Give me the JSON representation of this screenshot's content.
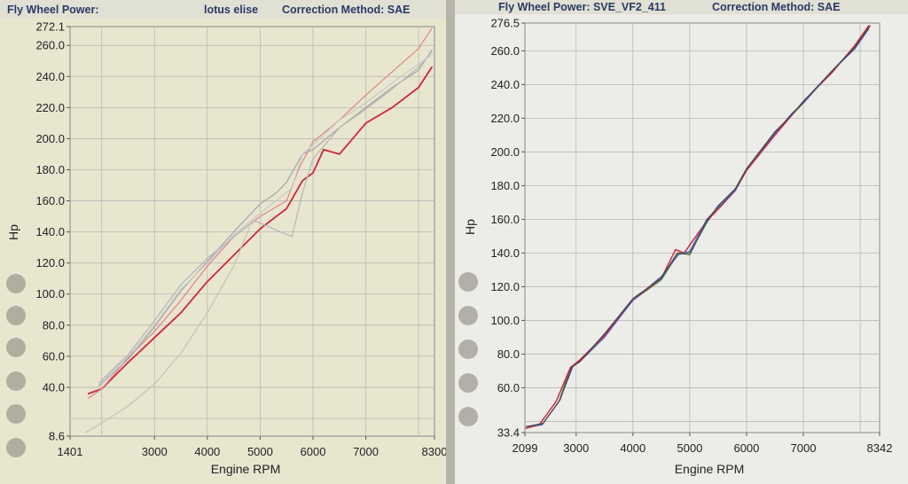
{
  "chart_data": [
    {
      "type": "line",
      "header": {
        "left": "Fly Wheel Power:",
        "middle": "lotus elise",
        "right": "Correction Method: SAE"
      },
      "xlabel": "Engine RPM",
      "ylabel": "Hp",
      "xlim": [
        1401,
        8300
      ],
      "ylim": [
        8.6,
        272.1
      ],
      "x_ticks": [
        {
          "value": 1401,
          "label": "1401"
        },
        {
          "value": 3000,
          "label": "3000"
        },
        {
          "value": 4000,
          "label": "4000"
        },
        {
          "value": 5000,
          "label": "5000"
        },
        {
          "value": 6000,
          "label": "6000"
        },
        {
          "value": 7000,
          "label": "7000"
        },
        {
          "value": 8300,
          "label": "8300"
        }
      ],
      "x_grid": [
        2000,
        3000,
        4000,
        5000,
        6000,
        7000,
        8000
      ],
      "y_ticks": [
        {
          "value": 8.6,
          "label": "8.6"
        },
        {
          "value": 40,
          "label": "40.0"
        },
        {
          "value": 60,
          "label": "60.0"
        },
        {
          "value": 80,
          "label": "80.0"
        },
        {
          "value": 100,
          "label": "100.0"
        },
        {
          "value": 120,
          "label": "120.0"
        },
        {
          "value": 140,
          "label": "140.0"
        },
        {
          "value": 160,
          "label": "160.0"
        },
        {
          "value": 180,
          "label": "180.0"
        },
        {
          "value": 200,
          "label": "200.0"
        },
        {
          "value": 220,
          "label": "220.0"
        },
        {
          "value": 240,
          "label": "240.0"
        },
        {
          "value": 260,
          "label": "260.0"
        },
        {
          "value": 272.1,
          "label": "272.1"
        }
      ],
      "y_grid": [
        20,
        40,
        60,
        80,
        100,
        120,
        140,
        160,
        180,
        200,
        220,
        240,
        260
      ],
      "series": [
        {
          "name": "red-dark",
          "color": "#d0253a",
          "width": 1.8,
          "points": [
            [
              1750,
              36
            ],
            [
              2000,
              39
            ],
            [
              2500,
              56
            ],
            [
              3000,
              72
            ],
            [
              3500,
              88
            ],
            [
              4000,
              108
            ],
            [
              4500,
              125
            ],
            [
              5000,
              142
            ],
            [
              5500,
              155
            ],
            [
              5800,
              173
            ],
            [
              6000,
              178
            ],
            [
              6200,
              193
            ],
            [
              6500,
              190
            ],
            [
              7000,
              210
            ],
            [
              7500,
              220
            ],
            [
              8000,
              233
            ],
            [
              8250,
              246
            ]
          ]
        },
        {
          "name": "red-light",
          "color": "#e08a8e",
          "width": 1.3,
          "points": [
            [
              1750,
              33
            ],
            [
              2000,
              39
            ],
            [
              2500,
              59
            ],
            [
              3000,
              76
            ],
            [
              3500,
              96
            ],
            [
              4000,
              118
            ],
            [
              4500,
              137
            ],
            [
              5000,
              150
            ],
            [
              5500,
              160
            ],
            [
              5750,
              182
            ],
            [
              6000,
              198
            ],
            [
              6500,
              212
            ],
            [
              7000,
              228
            ],
            [
              7500,
              243
            ],
            [
              8000,
              258
            ],
            [
              8250,
              271
            ]
          ]
        },
        {
          "name": "gray-1",
          "color": "#a9a9a9",
          "width": 1.3,
          "points": [
            [
              1950,
              41
            ],
            [
              2500,
              58
            ],
            [
              3000,
              79
            ],
            [
              3500,
              102
            ],
            [
              4000,
              121
            ],
            [
              4500,
              140
            ],
            [
              5000,
              158
            ],
            [
              5300,
              165
            ],
            [
              5500,
              172
            ],
            [
              5800,
              190
            ],
            [
              6000,
              193
            ],
            [
              6500,
              207
            ],
            [
              7000,
              220
            ],
            [
              7500,
              233
            ],
            [
              8000,
              244
            ],
            [
              8250,
              257
            ]
          ]
        },
        {
          "name": "gray-2",
          "color": "#b8b8b8",
          "width": 1.3,
          "points": [
            [
              1950,
              43
            ],
            [
              2500,
              61
            ],
            [
              3000,
              83
            ],
            [
              3500,
              106
            ],
            [
              4000,
              123
            ],
            [
              4500,
              137
            ],
            [
              4900,
              147
            ],
            [
              5250,
              142
            ],
            [
              5600,
              137
            ],
            [
              5800,
              165
            ],
            [
              6000,
              187
            ],
            [
              6500,
              207
            ],
            [
              7000,
              219
            ],
            [
              7500,
              232
            ],
            [
              8000,
              246
            ],
            [
              8250,
              256
            ]
          ]
        },
        {
          "name": "gray-3",
          "color": "#c8c8c8",
          "width": 1.2,
          "points": [
            [
              1950,
              42
            ],
            [
              2500,
              60
            ],
            [
              3000,
              80
            ],
            [
              3500,
              103
            ],
            [
              4000,
              120
            ],
            [
              4500,
              138
            ],
            [
              5000,
              152
            ],
            [
              5300,
              160
            ],
            [
              5600,
              168
            ],
            [
              5800,
              190
            ],
            [
              6000,
              196
            ],
            [
              6500,
              212
            ],
            [
              7000,
              223
            ],
            [
              7500,
              236
            ],
            [
              8000,
              248
            ],
            [
              8250,
              254
            ]
          ]
        },
        {
          "name": "gray-lower",
          "color": "#c3c3b6",
          "width": 1.2,
          "points": [
            [
              1700,
              11
            ],
            [
              2000,
              17
            ],
            [
              2500,
              28
            ],
            [
              3000,
              42
            ],
            [
              3500,
              62
            ],
            [
              4000,
              88
            ],
            [
              4500,
              118
            ],
            [
              4800,
              143
            ]
          ]
        }
      ]
    },
    {
      "type": "line",
      "header": {
        "left": "Fly Wheel Power: SVE_VF2_411",
        "right": "Correction Method: SAE"
      },
      "xlabel": "Engine RPM",
      "ylabel": "Hp",
      "xlim": [
        2099,
        8342
      ],
      "ylim": [
        33.4,
        276.5
      ],
      "x_ticks": [
        {
          "value": 2099,
          "label": "2099"
        },
        {
          "value": 3000,
          "label": "3000"
        },
        {
          "value": 4000,
          "label": "4000"
        },
        {
          "value": 5000,
          "label": "5000"
        },
        {
          "value": 6000,
          "label": "6000"
        },
        {
          "value": 7000,
          "label": "7000"
        },
        {
          "value": 8342,
          "label": "8342"
        }
      ],
      "x_grid": [
        3000,
        4000,
        5000,
        6000,
        7000,
        8000
      ],
      "y_ticks": [
        {
          "value": 33.4,
          "label": "33.4"
        },
        {
          "value": 60,
          "label": "60.0"
        },
        {
          "value": 80,
          "label": "80.0"
        },
        {
          "value": 100,
          "label": "100.0"
        },
        {
          "value": 120,
          "label": "120.0"
        },
        {
          "value": 140,
          "label": "140.0"
        },
        {
          "value": 160,
          "label": "160.0"
        },
        {
          "value": 180,
          "label": "180.0"
        },
        {
          "value": 200,
          "label": "200.0"
        },
        {
          "value": 220,
          "label": "220.0"
        },
        {
          "value": 240,
          "label": "240.0"
        },
        {
          "value": 260,
          "label": "260.0"
        },
        {
          "value": 276.5,
          "label": "276.5"
        }
      ],
      "y_grid": [
        40,
        60,
        80,
        100,
        120,
        140,
        160,
        180,
        200,
        220,
        240,
        260
      ],
      "series": [
        {
          "name": "green",
          "color": "#3c9a4a",
          "width": 1.3,
          "points": [
            [
              2150,
              37
            ],
            [
              2400,
              38
            ],
            [
              2700,
              52
            ],
            [
              2900,
              72
            ],
            [
              3100,
              77
            ],
            [
              3500,
              92
            ],
            [
              4000,
              112
            ],
            [
              4500,
              124
            ],
            [
              4800,
              140
            ],
            [
              5000,
              140
            ],
            [
              5300,
              158
            ],
            [
              5500,
              168
            ],
            [
              5800,
              178
            ],
            [
              6000,
              190
            ],
            [
              6500,
              212
            ],
            [
              6800,
              222
            ],
            [
              7000,
              229
            ],
            [
              7500,
              248
            ],
            [
              7900,
              262
            ],
            [
              8150,
              274
            ]
          ]
        },
        {
          "name": "red",
          "color": "#cf2a40",
          "width": 1.5,
          "points": [
            [
              2120,
              36
            ],
            [
              2350,
              38
            ],
            [
              2650,
              52
            ],
            [
              2900,
              72
            ],
            [
              3050,
              76
            ],
            [
              3500,
              91
            ],
            [
              4000,
              112
            ],
            [
              4500,
              125
            ],
            [
              4750,
              142
            ],
            [
              4900,
              140
            ],
            [
              5300,
              159
            ],
            [
              5500,
              166
            ],
            [
              5800,
              177
            ],
            [
              6000,
              189
            ],
            [
              6500,
              210
            ],
            [
              6800,
              222
            ],
            [
              7000,
              230
            ],
            [
              7500,
              247
            ],
            [
              7900,
              263
            ],
            [
              8150,
              275
            ]
          ]
        },
        {
          "name": "blue",
          "color": "#4a5ab4",
          "width": 1.2,
          "points": [
            [
              2120,
              37
            ],
            [
              2400,
              38
            ],
            [
              2700,
              52
            ],
            [
              2950,
              73
            ],
            [
              3050,
              75
            ],
            [
              3500,
              90
            ],
            [
              4000,
              112
            ],
            [
              4500,
              126
            ],
            [
              4800,
              139
            ],
            [
              5000,
              141
            ],
            [
              5300,
              160
            ],
            [
              5500,
              167
            ],
            [
              5800,
              177
            ],
            [
              6000,
              190
            ],
            [
              6500,
              211
            ],
            [
              6800,
              223
            ],
            [
              7000,
              229
            ],
            [
              7500,
              248
            ],
            [
              7900,
              261
            ],
            [
              8150,
              273
            ]
          ]
        },
        {
          "name": "dark",
          "color": "#4a4040",
          "width": 1.1,
          "points": [
            [
              2130,
              37
            ],
            [
              2420,
              39
            ],
            [
              2720,
              53
            ],
            [
              2920,
              72
            ],
            [
              3080,
              76
            ],
            [
              3500,
              92
            ],
            [
              4000,
              113
            ],
            [
              4500,
              125
            ],
            [
              4780,
              140
            ],
            [
              5000,
              139
            ],
            [
              5300,
              159
            ],
            [
              5500,
              168
            ],
            [
              5800,
              178
            ],
            [
              6000,
              190
            ],
            [
              6500,
              212
            ],
            [
              6800,
              222
            ],
            [
              7000,
              230
            ],
            [
              7500,
              248
            ],
            [
              7900,
              262
            ],
            [
              8180,
              275
            ]
          ]
        }
      ]
    }
  ]
}
